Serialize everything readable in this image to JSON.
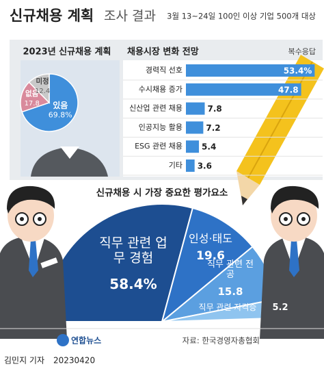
{
  "header": {
    "title": "신규채용 계획",
    "title2": "조사 결과",
    "subtitle": "3월 13~24일 100인 이상 기업 500개 대상"
  },
  "chart_data": [
    {
      "type": "pie",
      "title": "2023년 신규채용 계획",
      "categories": [
        "있음",
        "없음",
        "미정"
      ],
      "values": [
        69.8,
        17.8,
        12.4
      ],
      "value_labels": [
        "69.8%",
        "17.8",
        "12.4"
      ],
      "colors": [
        "#3f8fdb",
        "#d98a9c",
        "#c9c9c9"
      ]
    },
    {
      "type": "hbar",
      "title": "채용시장 변화 전망",
      "note": "복수응답",
      "categories": [
        "경력직 선호",
        "수시채용 증가",
        "신산업 관련 채용",
        "인공지능 활용",
        "ESG 관련 채용",
        "기타"
      ],
      "values": [
        53.4,
        47.8,
        7.8,
        7.2,
        5.4,
        3.6
      ],
      "value_labels": [
        "53.4%",
        "47.8",
        "7.8",
        "7.2",
        "5.4",
        "3.6"
      ],
      "color": "#3f8fdb",
      "xlim": [
        0,
        55
      ]
    },
    {
      "type": "halfpie",
      "title": "신규채용 시 가장 중요한 평가요소",
      "categories": [
        "직무 관련 업무 경험",
        "인성·태도",
        "직무 관련 전공",
        "직무 관련 자격증"
      ],
      "values": [
        58.4,
        19.6,
        15.8,
        5.2
      ],
      "value_labels": [
        "58.4%",
        "19.6",
        "15.8",
        "5.2"
      ],
      "colors": [
        "#1d4e91",
        "#2e72c6",
        "#5b9fe0",
        "#8fc4ef"
      ]
    }
  ],
  "footer": {
    "logo": "연합뉴스",
    "source": "자료: 한국경영자총협회",
    "author": "김민지 기자",
    "date": "20230420"
  }
}
